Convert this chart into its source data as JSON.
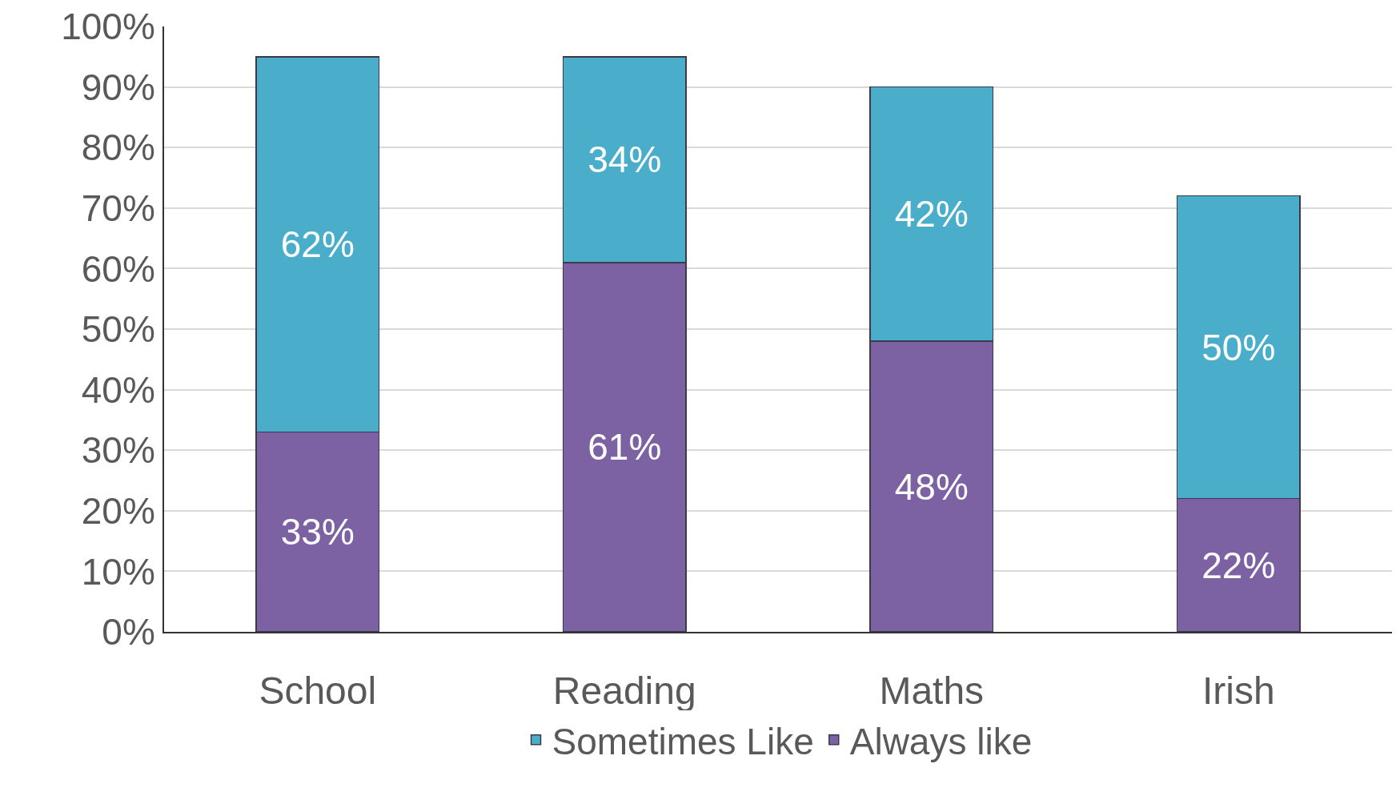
{
  "chart_data": {
    "type": "bar",
    "stacked": true,
    "categories": [
      "School",
      "Reading",
      "Maths",
      "Irish"
    ],
    "series": [
      {
        "name": "Always like",
        "color": "#7d62a3",
        "values": [
          33,
          61,
          48,
          22
        ],
        "value_labels": [
          "33%",
          "61%",
          "48%",
          "22%"
        ]
      },
      {
        "name": "Sometimes Like",
        "color": "#4aaecb",
        "values": [
          62,
          34,
          42,
          50
        ],
        "value_labels": [
          "62%",
          "34%",
          "42%",
          "50%"
        ]
      }
    ],
    "ylim": [
      0,
      100
    ],
    "yticks": [
      {
        "value": 0,
        "label": "0%"
      },
      {
        "value": 10,
        "label": "10%"
      },
      {
        "value": 20,
        "label": "20%"
      },
      {
        "value": 30,
        "label": "30%"
      },
      {
        "value": 40,
        "label": "40%"
      },
      {
        "value": 50,
        "label": "50%"
      },
      {
        "value": 60,
        "label": "60%"
      },
      {
        "value": 70,
        "label": "70%"
      },
      {
        "value": 80,
        "label": "80%"
      },
      {
        "value": 90,
        "label": "90%"
      },
      {
        "value": 100,
        "label": "100%"
      }
    ],
    "grid": "y",
    "legend": "bottom"
  }
}
